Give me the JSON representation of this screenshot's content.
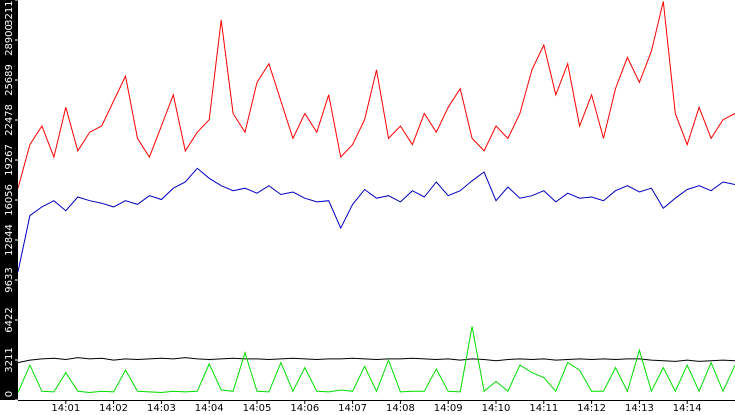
{
  "chart_data": {
    "type": "line",
    "x": [
      0,
      0.25,
      0.5,
      0.75,
      1,
      1.25,
      1.5,
      1.75,
      2,
      2.25,
      2.5,
      2.75,
      3,
      3.25,
      3.5,
      3.75,
      4,
      4.25,
      4.5,
      4.75,
      5,
      5.25,
      5.5,
      5.75,
      6,
      6.25,
      6.5,
      6.75,
      7,
      7.25,
      7.5,
      7.75,
      8,
      8.25,
      8.5,
      8.75,
      9,
      9.25,
      9.5,
      9.75,
      10,
      10.25,
      10.5,
      10.75,
      11,
      11.25,
      11.5,
      11.75,
      12,
      12.25,
      12.5,
      12.75,
      13,
      13.25,
      13.5,
      13.75,
      14,
      14.25,
      14.5,
      14.75,
      15
    ],
    "xlim": [
      0,
      15
    ],
    "xticks": [
      {
        "value": 1,
        "label": "14:01"
      },
      {
        "value": 2,
        "label": "14:02"
      },
      {
        "value": 3,
        "label": "14:03"
      },
      {
        "value": 4,
        "label": "14:04"
      },
      {
        "value": 5,
        "label": "14:05"
      },
      {
        "value": 6,
        "label": "14:06"
      },
      {
        "value": 7,
        "label": "14:07"
      },
      {
        "value": 8,
        "label": "14:08"
      },
      {
        "value": 9,
        "label": "14:09"
      },
      {
        "value": 10,
        "label": "14:10"
      },
      {
        "value": 11,
        "label": "14:11"
      },
      {
        "value": 12,
        "label": "14:12"
      },
      {
        "value": 13,
        "label": "14:13"
      },
      {
        "value": 14,
        "label": "14:14"
      }
    ],
    "ylim": [
      0,
      32112
    ],
    "yticks": [
      0,
      3211,
      6422,
      9633,
      12844,
      16056,
      19267,
      22478,
      25689,
      28900,
      32112
    ],
    "series": [
      {
        "color": "#ff0000",
        "values": [
          17000,
          20500,
          22000,
          19500,
          23500,
          20000,
          21500,
          22000,
          24000,
          26000,
          21000,
          19500,
          22000,
          24500,
          20000,
          21500,
          22500,
          30500,
          23000,
          21500,
          25500,
          27000,
          24000,
          21000,
          23000,
          21500,
          24500,
          19500,
          20500,
          22500,
          26500,
          21000,
          22000,
          20500,
          23000,
          21500,
          23500,
          25000,
          21000,
          20000,
          22000,
          21000,
          23000,
          26500,
          28500,
          24500,
          27000,
          22000,
          24500,
          21000,
          25000,
          27500,
          25500,
          28000,
          32000,
          23000,
          20500,
          23500,
          21000,
          22500,
          23000
        ]
      },
      {
        "color": "#0000c0",
        "values": [
          10300,
          14800,
          15500,
          16000,
          15200,
          16300,
          16000,
          15800,
          15500,
          16000,
          15700,
          16400,
          16100,
          17000,
          17500,
          18600,
          17800,
          17200,
          16800,
          17000,
          16600,
          17200,
          16500,
          16700,
          16200,
          15900,
          16000,
          13800,
          15700,
          16900,
          16200,
          16400,
          15900,
          16800,
          16300,
          17500,
          16400,
          16800,
          17600,
          18300,
          16000,
          17100,
          16200,
          16400,
          16800,
          15900,
          16600,
          16200,
          16300,
          16000,
          16800,
          17200,
          16700,
          17000,
          15400,
          16200,
          16900,
          17200,
          16800,
          17500,
          17300
        ]
      },
      {
        "color": "#000000",
        "values": [
          3000,
          3200,
          3300,
          3350,
          3250,
          3400,
          3300,
          3350,
          3200,
          3300,
          3250,
          3300,
          3350,
          3300,
          3400,
          3300,
          3250,
          3300,
          3350,
          3300,
          3300,
          3250,
          3300,
          3350,
          3300,
          3250,
          3300,
          3300,
          3350,
          3300,
          3250,
          3300,
          3300,
          3350,
          3300,
          3250,
          3300,
          3200,
          3300,
          3250,
          3150,
          3250,
          3300,
          3250,
          3300,
          3200,
          3250,
          3300,
          3250,
          3300,
          3250,
          3300,
          3300,
          3200,
          3150,
          3100,
          3200,
          3100,
          3150,
          3200,
          3150
        ]
      },
      {
        "color": "#00dd00",
        "values": [
          600,
          2800,
          700,
          650,
          2200,
          700,
          600,
          700,
          650,
          2400,
          700,
          650,
          600,
          700,
          650,
          700,
          2900,
          800,
          700,
          3800,
          700,
          650,
          3000,
          700,
          2600,
          700,
          650,
          800,
          700,
          2700,
          700,
          3200,
          650,
          700,
          700,
          2500,
          700,
          650,
          5900,
          700,
          1500,
          700,
          2800,
          2200,
          1800,
          700,
          3000,
          2400,
          700,
          700,
          2600,
          700,
          4000,
          700,
          2600,
          700,
          2800,
          700,
          3000,
          700,
          2800
        ]
      }
    ]
  }
}
